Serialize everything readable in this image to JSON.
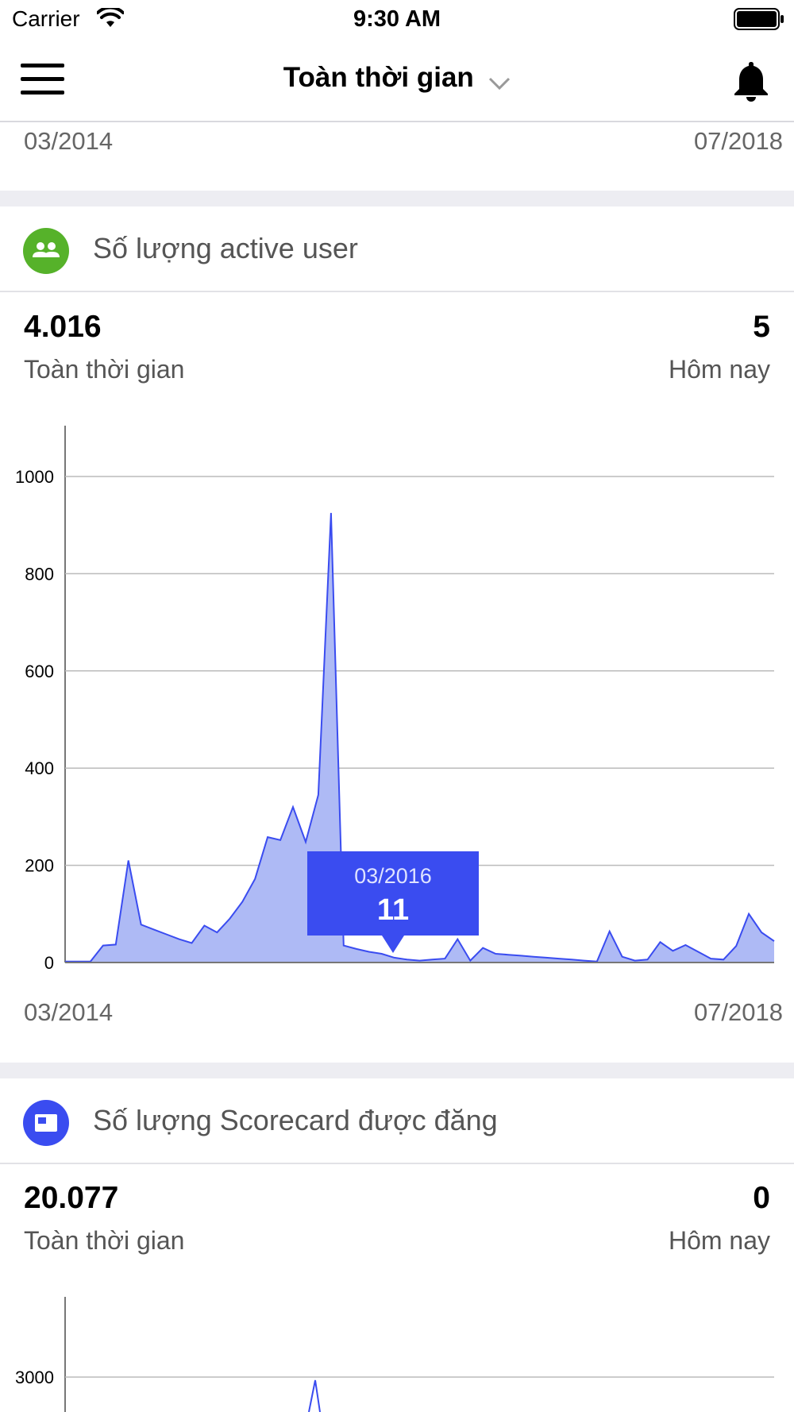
{
  "status_bar": {
    "carrier": "Carrier",
    "time": "9:30 AM"
  },
  "nav": {
    "title": "Toàn thời gian",
    "menu_icon": "hamburger-menu-icon",
    "dropdown_icon": "chevron-down-icon",
    "notification_icon": "bell-icon"
  },
  "top_range": {
    "start": "03/2014",
    "end": "07/2018"
  },
  "active_users": {
    "title": "Số lượng active user",
    "icon": "users-icon",
    "icon_color": "#56b22a",
    "total_value": "4.016",
    "total_label": "Toàn thời gian",
    "today_value": "5",
    "today_label": "Hôm nay",
    "range_start": "03/2014",
    "range_end": "07/2018"
  },
  "scorecards": {
    "title": "Số lượng Scorecard được đăng",
    "icon": "scorecard-icon",
    "icon_color": "#3a4cf0",
    "total_value": "20.077",
    "total_label": "Toàn thời gian",
    "today_value": "0",
    "today_label": "Hôm nay"
  },
  "chart_data": [
    {
      "type": "area",
      "ylim": [
        0,
        1100
      ],
      "yticks": [
        "0",
        "200",
        "400",
        "600",
        "800",
        "1000"
      ],
      "fill_color": "#aebaf5",
      "line_color": "#3a4cf0",
      "values": [
        2,
        2,
        2,
        35,
        37,
        210,
        78,
        68,
        58,
        48,
        40,
        76,
        62,
        90,
        125,
        172,
        258,
        252,
        320,
        248,
        345,
        925,
        35,
        28,
        22,
        18,
        10,
        6,
        4,
        6,
        8,
        48,
        4,
        30,
        18,
        16,
        14,
        12,
        10,
        8,
        6,
        4,
        2,
        64,
        12,
        4,
        6,
        42,
        24,
        36,
        22,
        8,
        6,
        34,
        100,
        62,
        44
      ],
      "tooltip": {
        "label": "03/2016",
        "value": "11",
        "color": "#3a4cf0"
      }
    },
    {
      "type": "area",
      "yticks": [
        "3000"
      ],
      "line_color": "#3a4cf0"
    }
  ]
}
